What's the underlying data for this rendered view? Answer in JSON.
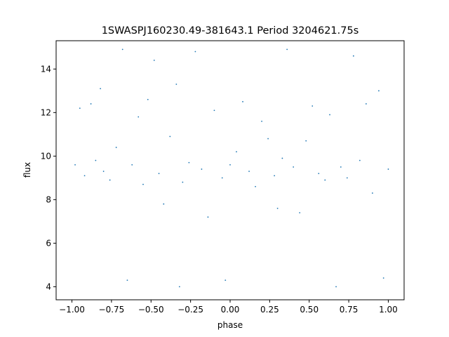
{
  "chart_data": {
    "type": "scatter",
    "title": "1SWASPJ160230.49-381643.1 Period 3204621.75s",
    "xlabel": "phase",
    "ylabel": "flux",
    "xlim": [
      -1.1,
      1.1
    ],
    "ylim": [
      3.4,
      15.3
    ],
    "x_ticks": [
      -1.0,
      -0.75,
      -0.5,
      -0.25,
      0.0,
      0.25,
      0.5,
      0.75,
      1.0
    ],
    "x_tick_labels": [
      "−1.00",
      "−0.75",
      "−0.50",
      "−0.25",
      "0.00",
      "0.25",
      "0.50",
      "0.75",
      "1.00"
    ],
    "y_ticks": [
      4,
      6,
      8,
      10,
      12,
      14
    ],
    "y_tick_labels": [
      "4",
      "6",
      "8",
      "10",
      "12",
      "14"
    ],
    "grid": false,
    "legend": "none",
    "marker_color": "#1f77b4",
    "series": [
      {
        "points": [
          [
            -0.98,
            9.6
          ],
          [
            -0.95,
            12.2
          ],
          [
            -0.92,
            9.1
          ],
          [
            -0.88,
            12.4
          ],
          [
            -0.85,
            9.8
          ],
          [
            -0.82,
            13.1
          ],
          [
            -0.8,
            9.3
          ],
          [
            -0.76,
            8.9
          ],
          [
            -0.72,
            10.4
          ],
          [
            -0.68,
            14.9
          ],
          [
            -0.65,
            4.3
          ],
          [
            -0.62,
            9.6
          ],
          [
            -0.58,
            11.8
          ],
          [
            -0.55,
            8.7
          ],
          [
            -0.52,
            12.6
          ],
          [
            -0.48,
            14.4
          ],
          [
            -0.45,
            9.2
          ],
          [
            -0.42,
            7.8
          ],
          [
            -0.38,
            10.9
          ],
          [
            -0.34,
            13.3
          ],
          [
            -0.32,
            4.0
          ],
          [
            -0.3,
            8.8
          ],
          [
            -0.26,
            9.7
          ],
          [
            -0.22,
            14.8
          ],
          [
            -0.18,
            9.4
          ],
          [
            -0.14,
            7.2
          ],
          [
            -0.1,
            12.1
          ],
          [
            -0.05,
            9.0
          ],
          [
            -0.03,
            4.3
          ],
          [
            0.0,
            9.6
          ],
          [
            0.04,
            10.2
          ],
          [
            0.08,
            12.5
          ],
          [
            0.12,
            9.3
          ],
          [
            0.16,
            8.6
          ],
          [
            0.2,
            11.6
          ],
          [
            0.24,
            10.8
          ],
          [
            0.28,
            9.1
          ],
          [
            0.3,
            7.6
          ],
          [
            0.33,
            9.9
          ],
          [
            0.36,
            14.9
          ],
          [
            0.4,
            9.5
          ],
          [
            0.44,
            7.4
          ],
          [
            0.48,
            10.7
          ],
          [
            0.52,
            12.3
          ],
          [
            0.56,
            9.2
          ],
          [
            0.6,
            8.9
          ],
          [
            0.63,
            11.9
          ],
          [
            0.67,
            4.0
          ],
          [
            0.7,
            9.5
          ],
          [
            0.74,
            9.0
          ],
          [
            0.78,
            14.6
          ],
          [
            0.82,
            9.8
          ],
          [
            0.86,
            12.4
          ],
          [
            0.9,
            8.3
          ],
          [
            0.94,
            13.0
          ],
          [
            0.97,
            4.4
          ],
          [
            1.0,
            9.4
          ]
        ]
      }
    ]
  }
}
